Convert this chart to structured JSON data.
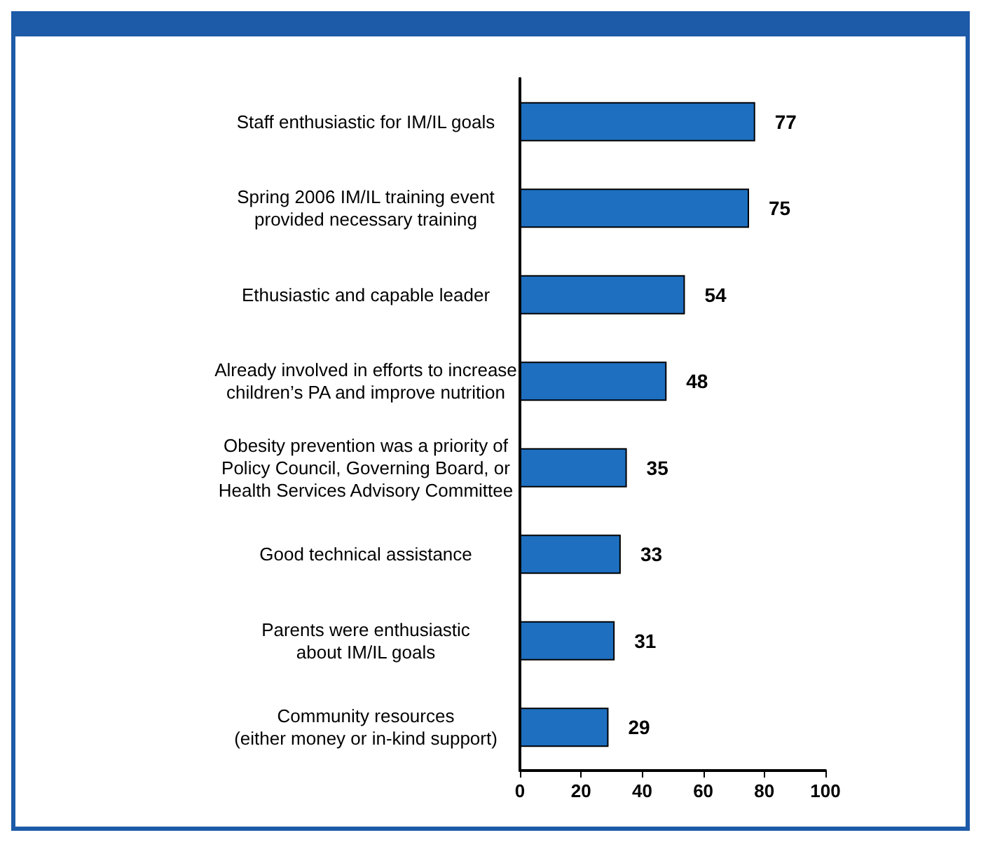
{
  "chart_data": {
    "type": "bar",
    "orientation": "horizontal",
    "categories": [
      "Staff enthusiastic for IM/IL goals",
      "Spring 2006 IM/IL training event\nprovided necessary training",
      "Ethusiastic and capable leader",
      "Already involved in efforts to increase\nchildren’s PA and improve nutrition",
      "Obesity prevention was a priority of\nPolicy Council, Governing Board, or\nHealth Services Advisory Committee",
      "Good technical assistance",
      "Parents were enthusiastic\nabout IM/IL goals",
      "Community resources\n(either money or in-kind support)"
    ],
    "values": [
      77,
      75,
      54,
      48,
      35,
      33,
      31,
      29
    ],
    "color": "#1e6fc0",
    "xlim": [
      0,
      100
    ],
    "xticks": [
      0,
      20,
      40,
      60,
      80,
      100
    ],
    "grid": false,
    "data_labels": true
  }
}
